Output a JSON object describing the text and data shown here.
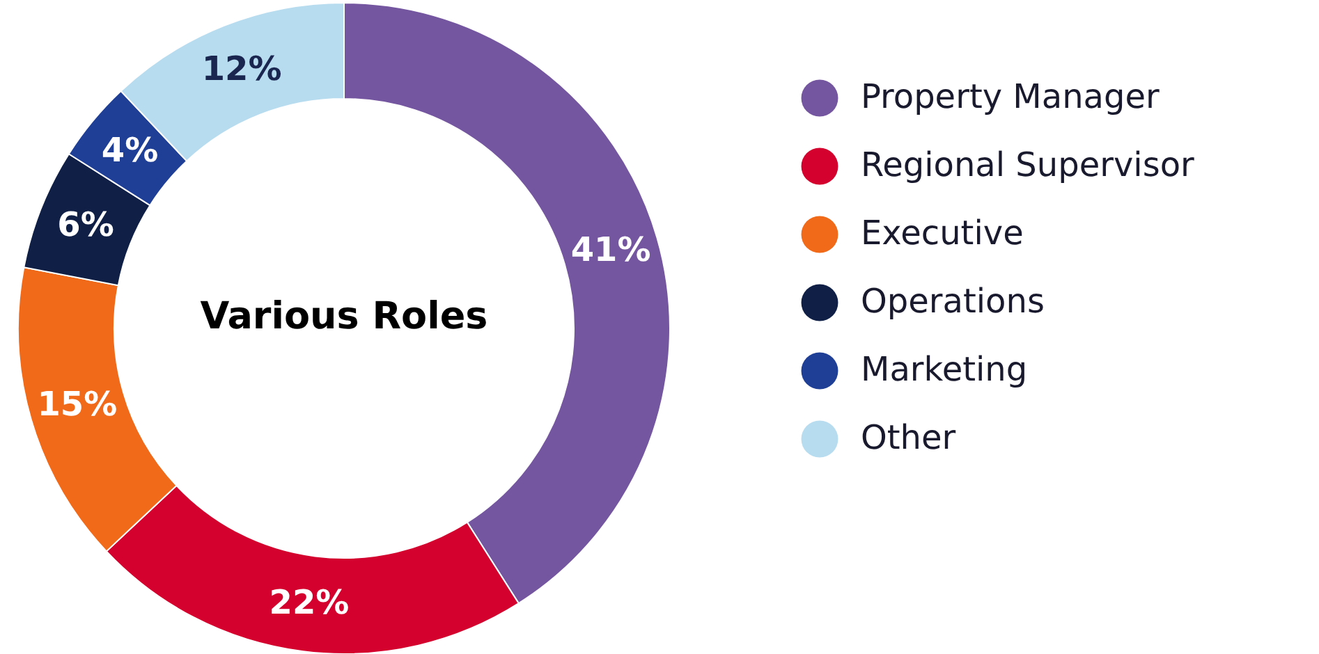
{
  "chart_data": {
    "type": "donut",
    "title": "Various Roles",
    "categories": [
      "Property Manager",
      "Regional Supervisor",
      "Executive",
      "Operations",
      " Marketing",
      "Other"
    ],
    "values": [
      41,
      22,
      15,
      6,
      4,
      12
    ],
    "value_labels": [
      "41%",
      "22%",
      "15%",
      "6%",
      "4%",
      "12%"
    ],
    "colors": [
      "#74559f",
      "#d4002e",
      "#f06a1a",
      "#0f1f45",
      "#1f3f96",
      "#b8dcef"
    ],
    "legend": "right"
  }
}
